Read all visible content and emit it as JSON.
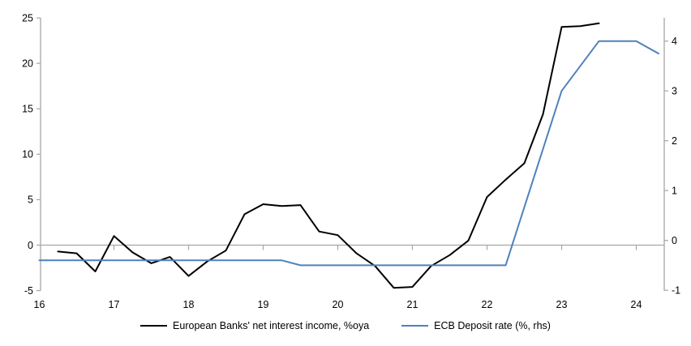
{
  "chart_data": {
    "type": "line",
    "series": [
      {
        "name": "European Banks' net interest income, %oya",
        "axis": "left",
        "color": "#000000",
        "points": [
          [
            16.25,
            -0.7
          ],
          [
            16.5,
            -0.9
          ],
          [
            16.75,
            -2.9
          ],
          [
            17,
            1.0
          ],
          [
            17.25,
            -0.8
          ],
          [
            17.5,
            -2.0
          ],
          [
            17.75,
            -1.3
          ],
          [
            18,
            -3.4
          ],
          [
            18.25,
            -1.8
          ],
          [
            18.5,
            -0.6
          ],
          [
            18.75,
            3.4
          ],
          [
            19,
            4.5
          ],
          [
            19.25,
            4.3
          ],
          [
            19.5,
            4.4
          ],
          [
            19.75,
            1.5
          ],
          [
            20,
            1.1
          ],
          [
            20.25,
            -0.9
          ],
          [
            20.5,
            -2.3
          ],
          [
            20.75,
            -4.7
          ],
          [
            21,
            -4.6
          ],
          [
            21.25,
            -2.3
          ],
          [
            21.5,
            -1.1
          ],
          [
            21.75,
            0.5
          ],
          [
            22,
            5.3
          ],
          [
            22.25,
            7.2
          ],
          [
            22.5,
            9.0
          ],
          [
            22.75,
            14.4
          ],
          [
            23,
            24.0
          ],
          [
            23.25,
            24.1
          ],
          [
            23.5,
            24.4
          ]
        ]
      },
      {
        "name": "ECB Deposit rate (%, rhs)",
        "axis": "right",
        "color": "#4f81bd",
        "points": [
          [
            16,
            -0.4
          ],
          [
            19.25,
            -0.4
          ],
          [
            19.5,
            -0.5
          ],
          [
            22.25,
            -0.5
          ],
          [
            23,
            3.0
          ],
          [
            23.5,
            4.0
          ],
          [
            24,
            4.0
          ],
          [
            24.3,
            3.75
          ]
        ]
      }
    ],
    "left_axis": {
      "ticks": [
        25,
        20,
        15,
        10,
        5,
        0,
        -5
      ],
      "range": [
        -5,
        25
      ]
    },
    "right_axis": {
      "ticks": [
        4,
        3,
        2,
        1,
        0,
        -1
      ],
      "range": [
        -1,
        4.47
      ]
    },
    "x_axis": {
      "ticks": [
        16,
        17,
        18,
        19,
        20,
        21,
        22,
        23,
        24
      ],
      "range": [
        16,
        24.38
      ]
    },
    "gridline_y": 0,
    "legend_position": "bottom",
    "title": "",
    "xlabel": "",
    "ylabel": ""
  },
  "colors": {
    "background": "#ffffff",
    "axis": "#a6a6a6",
    "text": "#000000",
    "series1": "#000000",
    "series2": "#4f81bd"
  }
}
